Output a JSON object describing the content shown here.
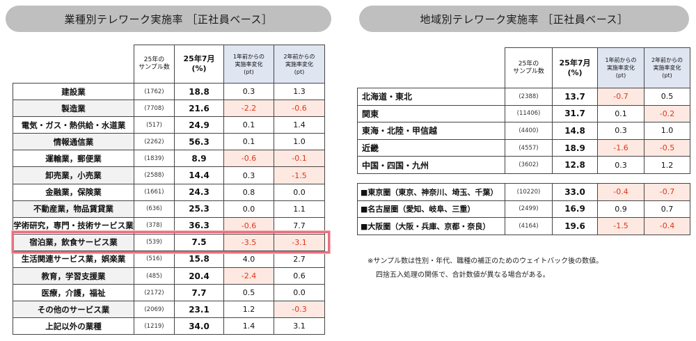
{
  "left": {
    "title": "業種別テレワーク実施率 ［正社員ベース］",
    "headers": {
      "sample": [
        "25年の",
        "サンプル数"
      ],
      "rate": [
        "25年7月",
        "(%)"
      ],
      "chg1": [
        "1年前からの",
        "実施率変化",
        "(pt)"
      ],
      "chg2": [
        "2年前からの",
        "実施率変化",
        "(pt)"
      ]
    },
    "rows": [
      {
        "name": "建設業",
        "sample": "(1762)",
        "rate": "18.8",
        "chg1": "0.3",
        "chg2": "1.3"
      },
      {
        "name": "製造業",
        "sample": "(7708)",
        "rate": "21.6",
        "chg1": "-2.2",
        "chg2": "-0.6"
      },
      {
        "name": "電気・ガス・熱供給・水道業",
        "sample": "(517)",
        "rate": "24.9",
        "chg1": "0.1",
        "chg2": "1.4"
      },
      {
        "name": "情報通信業",
        "sample": "(2262)",
        "rate": "56.3",
        "chg1": "0.1",
        "chg2": "1.0"
      },
      {
        "name": "運輸業，郵便業",
        "sample": "(1839)",
        "rate": "8.9",
        "chg1": "-0.6",
        "chg2": "-0.1"
      },
      {
        "name": "卸売業，小売業",
        "sample": "(2588)",
        "rate": "14.4",
        "chg1": "0.3",
        "chg2": "-1.5"
      },
      {
        "name": "金融業，保険業",
        "sample": "(1661)",
        "rate": "24.3",
        "chg1": "0.8",
        "chg2": "0.0"
      },
      {
        "name": "不動産業，物品賃貸業",
        "sample": "(636)",
        "rate": "25.3",
        "chg1": "0.0",
        "chg2": "1.1"
      },
      {
        "name": "学術研究，専門・技術サービス業",
        "sample": "(378)",
        "rate": "36.3",
        "chg1": "-0.6",
        "chg2": "7.7"
      },
      {
        "name": "宿泊業，飲食サービス業",
        "sample": "(539)",
        "rate": "7.5",
        "chg1": "-3.5",
        "chg2": "-3.1"
      },
      {
        "name": "生活関連サービス業，娯楽業",
        "sample": "(516)",
        "rate": "15.8",
        "chg1": "4.0",
        "chg2": "2.7"
      },
      {
        "name": "教育，学習支援業",
        "sample": "(485)",
        "rate": "20.4",
        "chg1": "-2.4",
        "chg2": "0.6"
      },
      {
        "name": "医療，介護，福祉",
        "sample": "(2172)",
        "rate": "7.7",
        "chg1": "0.5",
        "chg2": "0.0"
      },
      {
        "name": "その他のサービス業",
        "sample": "(2069)",
        "rate": "23.1",
        "chg1": "1.2",
        "chg2": "-0.3"
      },
      {
        "name": "上記以外の業種",
        "sample": "(1219)",
        "rate": "34.0",
        "chg1": "1.4",
        "chg2": "3.1"
      }
    ]
  },
  "right": {
    "title": "地域別テレワーク実施率 ［正社員ベース］",
    "headers": {
      "sample": [
        "25年の",
        "サンプル数"
      ],
      "rate": [
        "25年7月",
        "(%)"
      ],
      "chg1": [
        "1年前からの",
        "実施率変化",
        "(pt)"
      ],
      "chg2": [
        "2年前からの",
        "実施率変化",
        "(pt)"
      ]
    },
    "regions": [
      {
        "name": "北海道・東北",
        "sample": "(2388)",
        "rate": "13.7",
        "chg1": "-0.7",
        "chg2": "0.5"
      },
      {
        "name": "関東",
        "sample": "(11406)",
        "rate": "31.7",
        "chg1": "0.1",
        "chg2": "-0.2"
      },
      {
        "name": "東海・北陸・甲信越",
        "sample": "(4400)",
        "rate": "14.8",
        "chg1": "0.3",
        "chg2": "1.0"
      },
      {
        "name": "近畿",
        "sample": "(4557)",
        "rate": "18.9",
        "chg1": "-1.6",
        "chg2": "-0.5"
      },
      {
        "name": "中国・四国・九州",
        "sample": "(3602)",
        "rate": "12.8",
        "chg1": "0.3",
        "chg2": "1.2"
      }
    ],
    "metros": [
      {
        "name": "■東京圏（東京、神奈川、埼玉、千葉）",
        "sample": "(10220)",
        "rate": "33.0",
        "chg1": "-0.4",
        "chg2": "-0.7"
      },
      {
        "name": "■名古屋圏（愛知、岐阜、三重）",
        "sample": "(2499)",
        "rate": "16.9",
        "chg1": "0.9",
        "chg2": "0.7"
      },
      {
        "name": "■大阪圏（大阪・兵庫、京都・奈良）",
        "sample": "(4164)",
        "rate": "19.6",
        "chg1": "-1.5",
        "chg2": "-0.4"
      }
    ],
    "notes": [
      "※サンプル数は性別・年代、職種の補正のためのウェイトバック後の数値。",
      "四捨五入処理の関係で、合計数値が異なる場合がある。"
    ]
  },
  "colors": {
    "negative_text": "#e0341c",
    "negative_bg": "#fde9e1",
    "header_shade": "#dfe5f1",
    "highlight_border": "#e8707e",
    "banner_bg": "#bfbfbf"
  }
}
